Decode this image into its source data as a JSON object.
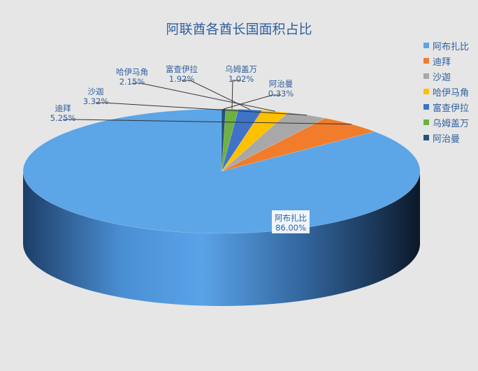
{
  "chart_data": {
    "type": "pie",
    "title": "阿联酋各酋长国面积占比",
    "categories": [
      "阿布扎比",
      "迪拜",
      "沙迦",
      "哈伊马角",
      "富查伊拉",
      "乌姆盖万",
      "阿治曼"
    ],
    "values": [
      86.0,
      5.25,
      3.32,
      2.15,
      1.92,
      1.02,
      0.33
    ],
    "value_labels": [
      "86.00%",
      "5.25%",
      "3.32%",
      "2.15%",
      "1.92%",
      "1.02%",
      "0.33%"
    ],
    "colors": [
      "#5ca5e6",
      "#f07c2c",
      "#a8a8a8",
      "#ffc000",
      "#3f73c8",
      "#6fb043",
      "#25527c"
    ],
    "legend_position": "right",
    "style": "3d"
  }
}
